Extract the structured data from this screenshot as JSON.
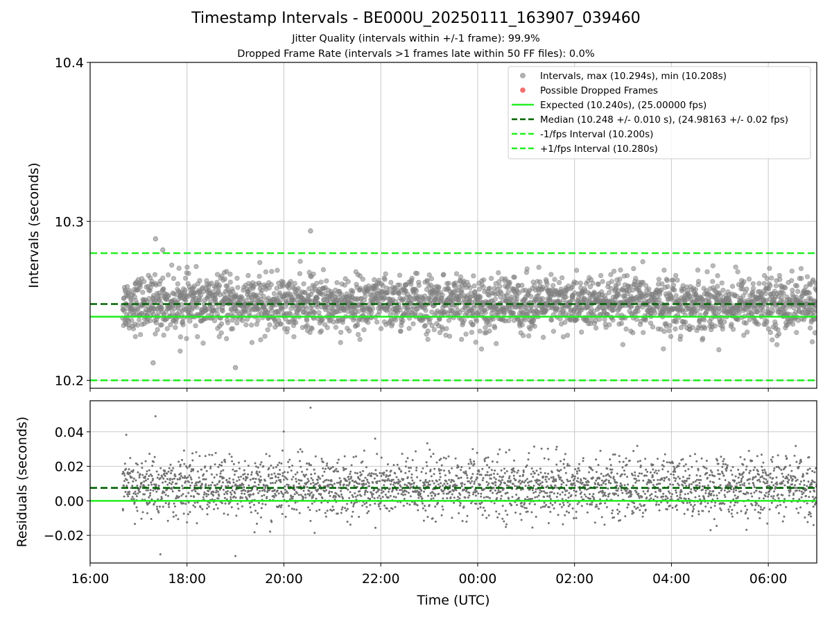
{
  "chart_data": [
    {
      "id": "intervals",
      "type": "scatter",
      "title": "Timestamp Intervals - BE000U_20250111_163907_039460",
      "subtitle_lines": [
        "Jitter Quality (intervals within +/-1 frame): 99.9%",
        "Dropped Frame Rate (intervals >1 frames late within 50 FF files): 0.0%"
      ],
      "xlabel": "",
      "ylabel": "Intervals (seconds)",
      "x_range_hours": [
        "16:00",
        "07:00"
      ],
      "x_data_range_hours": [
        "16:40",
        "07:00"
      ],
      "ylim": [
        10.195,
        10.4
      ],
      "yticks": [
        "10.2",
        "10.3",
        "10.4"
      ],
      "grid": true,
      "legend_position": "top-right",
      "series": [
        {
          "name": "Intervals, max (10.294s), min (10.208s)",
          "kind": "points",
          "color": "#808080",
          "point_count": 2800,
          "center": 10.248,
          "spread": 0.01,
          "max": 10.294,
          "min": 10.208
        },
        {
          "name": "Possible Dropped Frames",
          "kind": "points",
          "color": "#f06060",
          "point_count": 0
        },
        {
          "name": "Expected (10.240s), (25.00000 fps)",
          "kind": "hline",
          "value": 10.24,
          "color": "#22ee22",
          "style": "solid"
        },
        {
          "name": "Median (10.248 +/- 0.010 s), (24.98163 +/- 0.02 fps)",
          "kind": "hline",
          "value": 10.248,
          "color": "#006400",
          "style": "dashed"
        },
        {
          "name": "-1/fps Interval (10.200s)",
          "kind": "hline",
          "value": 10.2,
          "color": "#22ee22",
          "style": "dashed"
        },
        {
          "name": "+1/fps Interval (10.280s)",
          "kind": "hline",
          "value": 10.28,
          "color": "#22ee22",
          "style": "dashed"
        }
      ]
    },
    {
      "id": "residuals",
      "type": "scatter",
      "title": "",
      "xlabel": "Time (UTC)",
      "ylabel": "Residuals (seconds)",
      "x_range_hours": [
        "16:00",
        "07:00"
      ],
      "xticks": [
        "16:00",
        "18:00",
        "20:00",
        "22:00",
        "00:00",
        "02:00",
        "04:00",
        "06:00"
      ],
      "ylim": [
        -0.036,
        0.058
      ],
      "yticks": [
        "0.04",
        "0.02",
        "0.00",
        "−0.02"
      ],
      "grid": true,
      "series": [
        {
          "name": "Residuals",
          "kind": "points",
          "color": "#707070",
          "point_count": 2800,
          "center": 0.008,
          "spread": 0.01,
          "max": 0.054,
          "min": -0.032
        },
        {
          "name": "Zero",
          "kind": "hline",
          "value": 0.0,
          "color": "#22ee22",
          "style": "solid"
        },
        {
          "name": "Median offset",
          "kind": "hline",
          "value": 0.0075,
          "color": "#006400",
          "style": "dashed"
        }
      ]
    }
  ],
  "colors": {
    "expected": "#22ee22",
    "median": "#006400",
    "points": "#808080",
    "dropped": "#f06060"
  }
}
